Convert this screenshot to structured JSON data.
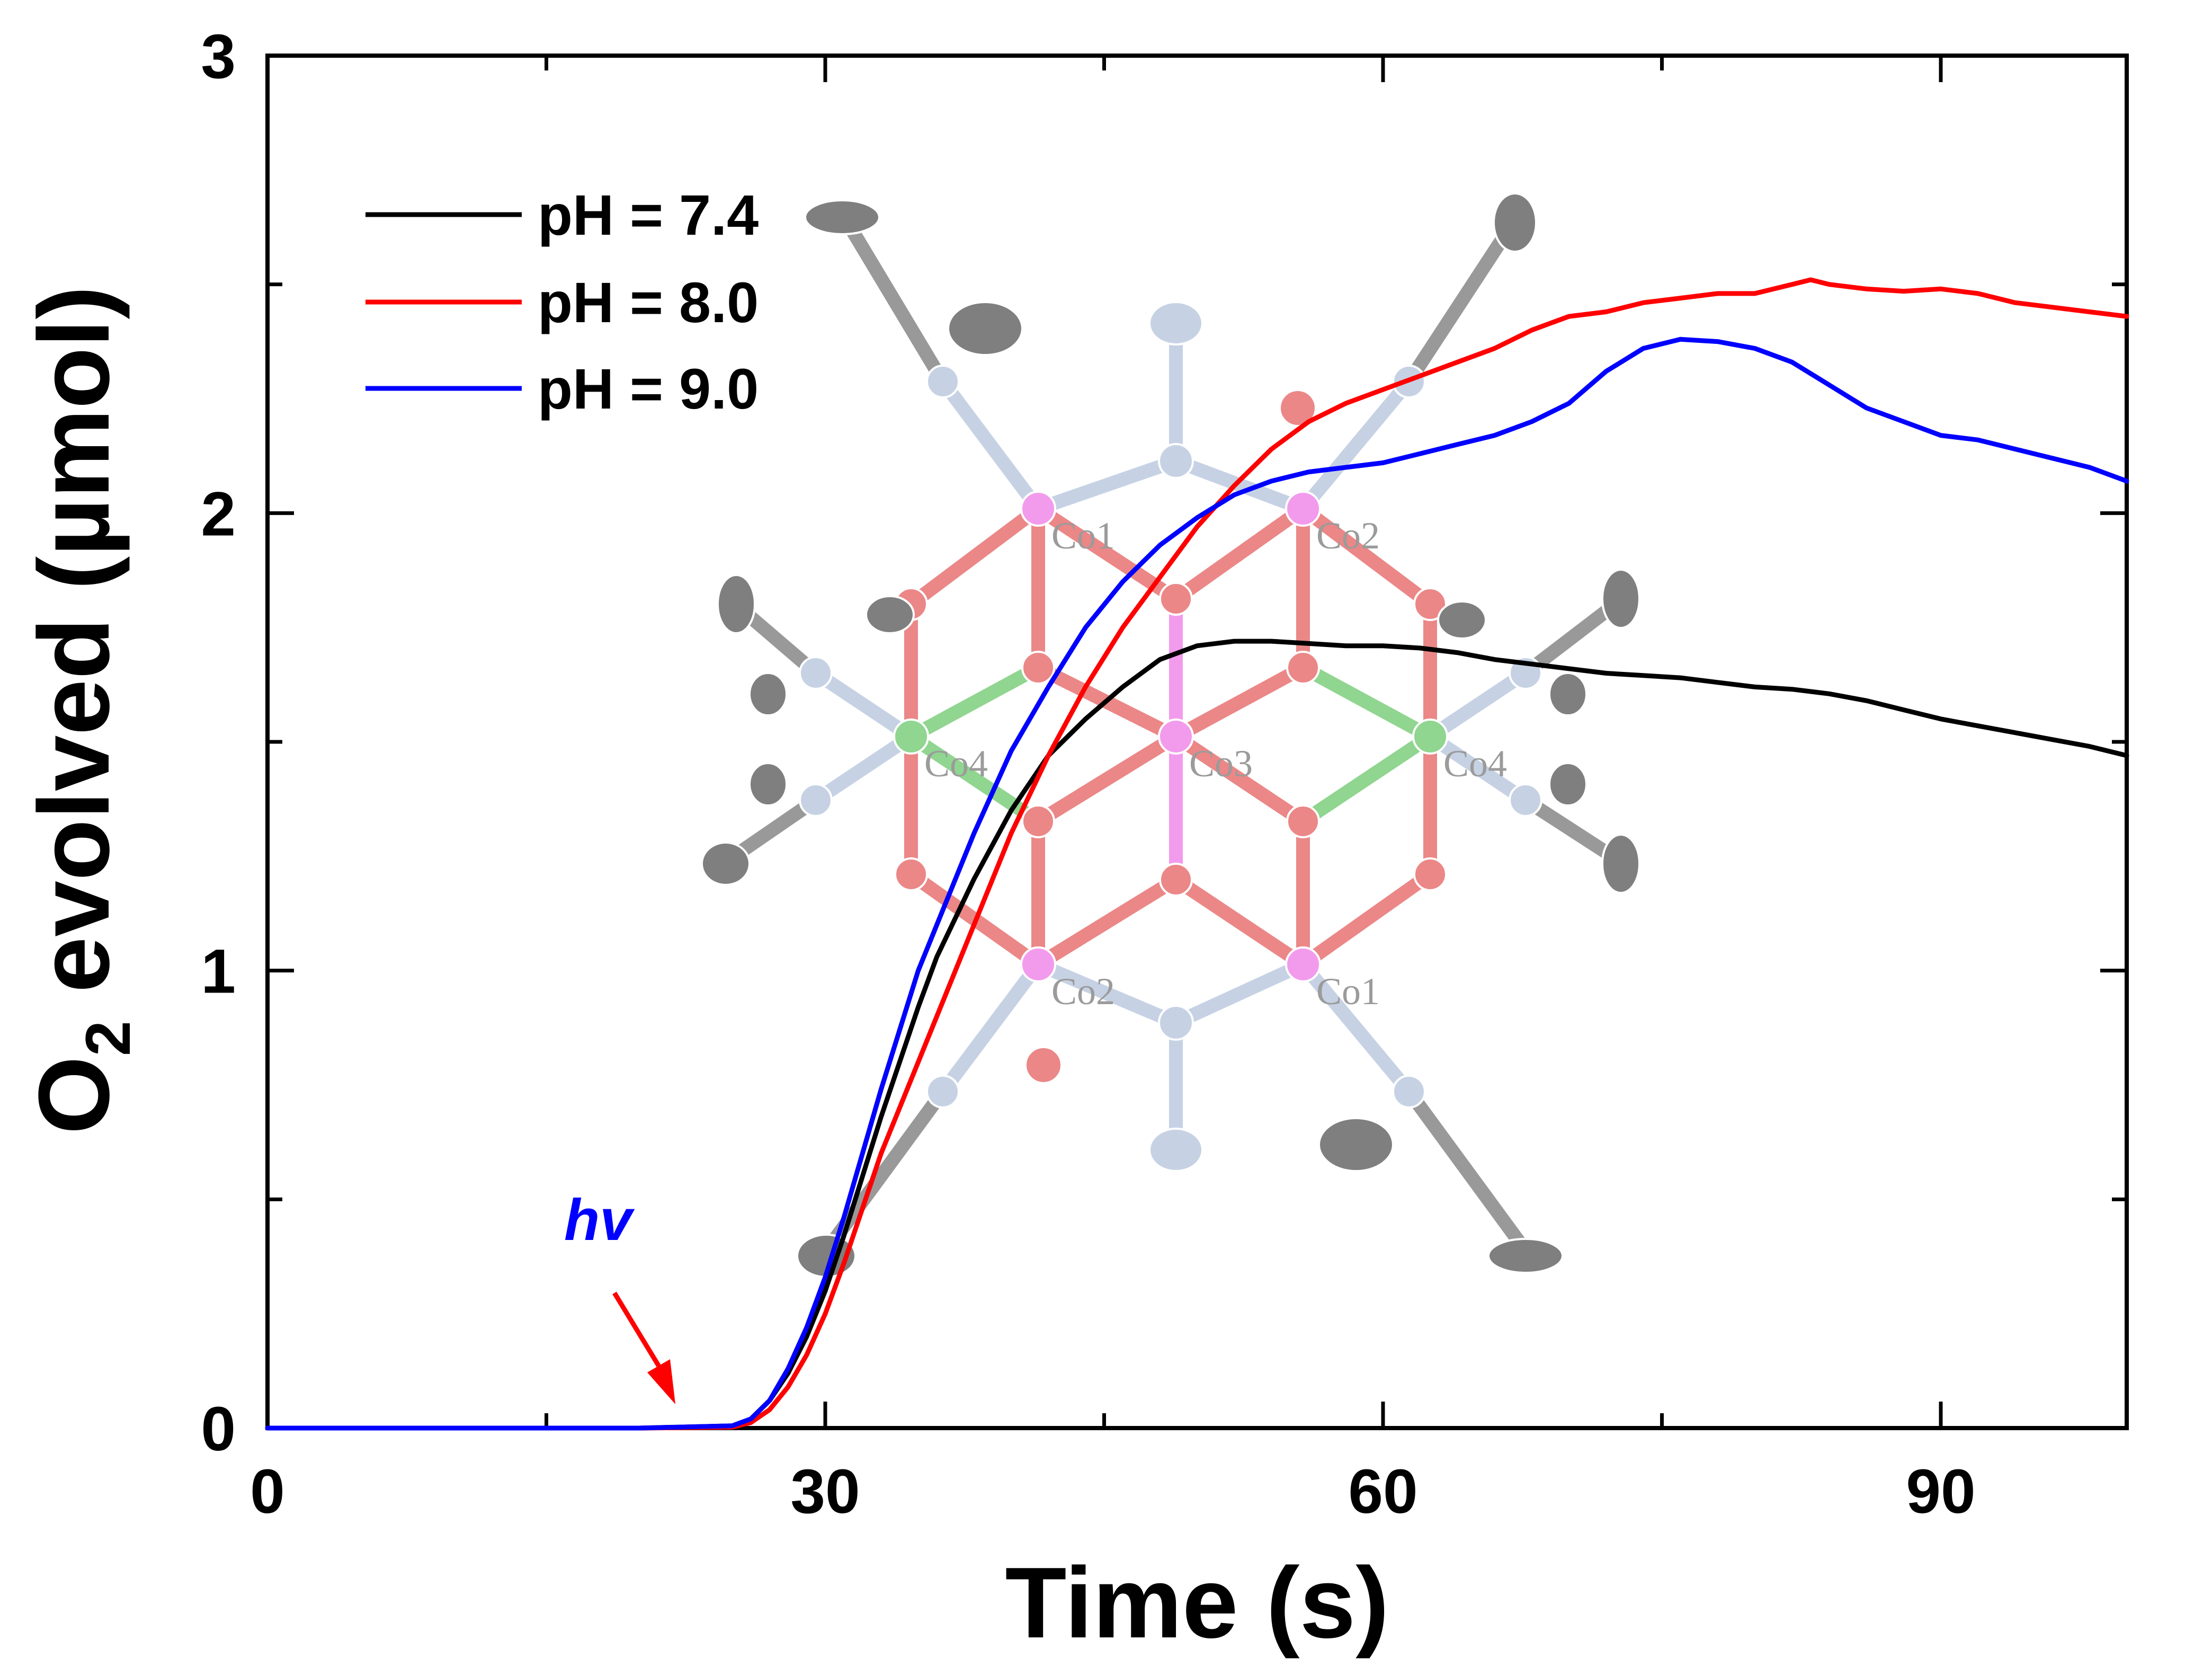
{
  "chart_data": {
    "type": "line",
    "title": "",
    "xlabel": "Time (s)",
    "ylabel_main": "O",
    "ylabel_sub": "2",
    "ylabel_rest": " evolved (µmol)",
    "xlim": [
      0,
      100
    ],
    "ylim": [
      0,
      3
    ],
    "xticks": [
      0,
      30,
      60,
      90
    ],
    "xticks_minor": [
      15,
      45,
      75
    ],
    "yticks": [
      0,
      1,
      2,
      3
    ],
    "yticks_minor": [
      0.5,
      1.5,
      2.5
    ],
    "xtick_labels": [
      "0",
      "30",
      "60",
      "90"
    ],
    "ytick_labels": [
      "0",
      "1",
      "2",
      "3"
    ],
    "legend_position": "top-left",
    "series": [
      {
        "name": "pH = 7.4",
        "color": "#000000",
        "x": [
          0,
          20,
          25,
          26,
          27,
          28,
          29,
          30,
          31,
          32,
          33,
          34,
          35,
          36,
          38,
          40,
          42,
          44,
          46,
          48,
          50,
          52,
          54,
          56,
          58,
          60,
          62,
          64,
          66,
          68,
          70,
          72,
          74,
          76,
          78,
          80,
          82,
          84,
          86,
          88,
          90,
          92,
          94,
          96,
          98,
          100
        ],
        "y": [
          0,
          0,
          0.005,
          0.02,
          0.06,
          0.12,
          0.2,
          0.3,
          0.42,
          0.55,
          0.68,
          0.8,
          0.92,
          1.03,
          1.2,
          1.35,
          1.47,
          1.55,
          1.62,
          1.68,
          1.71,
          1.72,
          1.72,
          1.715,
          1.71,
          1.71,
          1.705,
          1.695,
          1.68,
          1.67,
          1.66,
          1.65,
          1.645,
          1.64,
          1.63,
          1.62,
          1.615,
          1.605,
          1.59,
          1.57,
          1.55,
          1.535,
          1.52,
          1.505,
          1.49,
          1.47
        ]
      },
      {
        "name": "pH = 8.0",
        "color": "#ff0000",
        "x": [
          0,
          20,
          25,
          26,
          27,
          28,
          29,
          30,
          31,
          32,
          33,
          34,
          35,
          36,
          38,
          40,
          42,
          44,
          46,
          48,
          50,
          52,
          54,
          56,
          58,
          60,
          62,
          64,
          66,
          68,
          70,
          72,
          74,
          76,
          78,
          80,
          82,
          83,
          84,
          86,
          88,
          90,
          92,
          94,
          96,
          98,
          100
        ],
        "y": [
          0,
          0,
          0.002,
          0.012,
          0.04,
          0.09,
          0.16,
          0.25,
          0.36,
          0.48,
          0.6,
          0.7,
          0.8,
          0.9,
          1.1,
          1.3,
          1.47,
          1.62,
          1.75,
          1.86,
          1.97,
          2.06,
          2.14,
          2.2,
          2.24,
          2.27,
          2.3,
          2.33,
          2.36,
          2.4,
          2.43,
          2.44,
          2.46,
          2.47,
          2.48,
          2.48,
          2.5,
          2.51,
          2.5,
          2.49,
          2.485,
          2.49,
          2.48,
          2.46,
          2.45,
          2.44,
          2.43
        ]
      },
      {
        "name": "pH = 9.0",
        "color": "#0000ff",
        "x": [
          0,
          20,
          25,
          26,
          27,
          28,
          29,
          30,
          31,
          32,
          33,
          34,
          35,
          36,
          38,
          40,
          42,
          44,
          46,
          48,
          50,
          52,
          54,
          56,
          58,
          60,
          62,
          64,
          66,
          68,
          70,
          72,
          74,
          76,
          78,
          80,
          82,
          84,
          86,
          88,
          90,
          92,
          94,
          96,
          98,
          100
        ],
        "y": [
          0,
          0,
          0.005,
          0.02,
          0.06,
          0.13,
          0.22,
          0.33,
          0.46,
          0.6,
          0.74,
          0.87,
          1.0,
          1.1,
          1.3,
          1.48,
          1.62,
          1.75,
          1.85,
          1.93,
          1.99,
          2.04,
          2.07,
          2.09,
          2.1,
          2.11,
          2.13,
          2.15,
          2.17,
          2.2,
          2.24,
          2.31,
          2.36,
          2.38,
          2.375,
          2.36,
          2.33,
          2.28,
          2.23,
          2.2,
          2.17,
          2.16,
          2.14,
          2.12,
          2.1,
          2.07
        ]
      }
    ],
    "annotation": {
      "text": "hv",
      "text_color": "#0000ff",
      "arrow_color": "#ff0000",
      "arrow_target": [
        22,
        0.02
      ]
    },
    "inset_labels": [
      "Co1",
      "Co2",
      "Co3",
      "Co4",
      "Co4",
      "Co2",
      "Co1"
    ]
  }
}
